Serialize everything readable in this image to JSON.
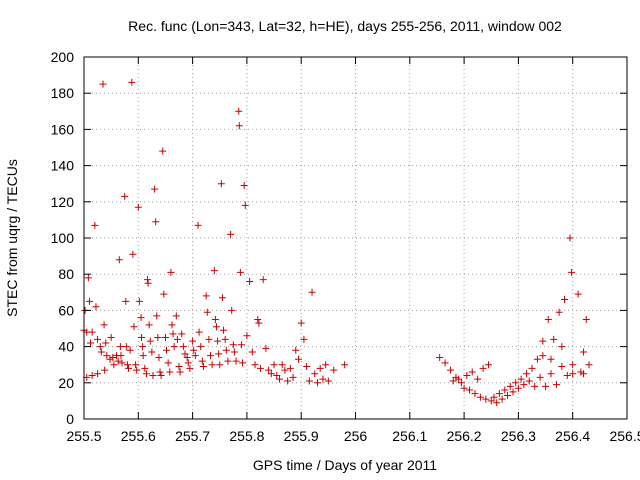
{
  "chart_data": {
    "type": "scatter",
    "title": "Rec. func (Lon=343, Lat=32, h=HE), days 255-256, 2011, window 002",
    "xlabel": "GPS time / Days of year 2011",
    "ylabel": "STEC from uqrg / TECUs",
    "xlim": [
      255.5,
      256.5
    ],
    "ylim": [
      0,
      200
    ],
    "grid": true,
    "marker": "plus",
    "color": "#cc0000",
    "xticks": [
      {
        "value": 255.5,
        "label": "255.5"
      },
      {
        "value": 255.6,
        "label": "255.6"
      },
      {
        "value": 255.7,
        "label": "255.7"
      },
      {
        "value": 255.8,
        "label": "255.8"
      },
      {
        "value": 255.9,
        "label": "255.9"
      },
      {
        "value": 256.0,
        "label": "256"
      },
      {
        "value": 256.1,
        "label": "256.1"
      },
      {
        "value": 256.2,
        "label": "256.2"
      },
      {
        "value": 256.3,
        "label": "256.3"
      },
      {
        "value": 256.4,
        "label": "256.4"
      },
      {
        "value": 256.5,
        "label": "256.5"
      }
    ],
    "yticks": [
      {
        "value": 0,
        "label": "0"
      },
      {
        "value": 20,
        "label": "20"
      },
      {
        "value": 40,
        "label": "40"
      },
      {
        "value": 60,
        "label": "60"
      },
      {
        "value": 80,
        "label": "80"
      },
      {
        "value": 100,
        "label": "100"
      },
      {
        "value": 120,
        "label": "120"
      },
      {
        "value": 140,
        "label": "140"
      },
      {
        "value": 160,
        "label": "160"
      },
      {
        "value": 180,
        "label": "180"
      },
      {
        "value": 200,
        "label": "200"
      }
    ],
    "series": [
      {
        "name": "STEC",
        "points": [
          [
            255.5,
            49
          ],
          [
            255.502,
            60
          ],
          [
            255.505,
            48
          ],
          [
            255.505,
            23
          ],
          [
            255.508,
            78
          ],
          [
            255.51,
            65
          ],
          [
            255.512,
            42
          ],
          [
            255.515,
            48
          ],
          [
            255.515,
            24
          ],
          [
            255.52,
            107
          ],
          [
            255.522,
            62
          ],
          [
            255.525,
            44
          ],
          [
            255.525,
            25
          ],
          [
            255.53,
            40
          ],
          [
            255.532,
            37
          ],
          [
            255.535,
            185
          ],
          [
            255.537,
            52
          ],
          [
            255.538,
            27
          ],
          [
            255.54,
            42
          ],
          [
            255.542,
            35
          ],
          [
            255.548,
            33
          ],
          [
            255.55,
            45
          ],
          [
            255.553,
            34
          ],
          [
            255.555,
            30
          ],
          [
            255.56,
            35
          ],
          [
            255.563,
            32
          ],
          [
            255.565,
            88
          ],
          [
            255.567,
            40
          ],
          [
            255.568,
            35
          ],
          [
            255.57,
            31
          ],
          [
            255.575,
            123
          ],
          [
            255.577,
            65
          ],
          [
            255.578,
            40
          ],
          [
            255.58,
            30
          ],
          [
            255.582,
            28
          ],
          [
            255.585,
            38
          ],
          [
            255.588,
            186
          ],
          [
            255.59,
            91
          ],
          [
            255.592,
            51
          ],
          [
            255.595,
            30
          ],
          [
            255.597,
            27
          ],
          [
            255.6,
            117
          ],
          [
            255.602,
            65
          ],
          [
            255.605,
            56
          ],
          [
            255.606,
            45
          ],
          [
            255.608,
            40
          ],
          [
            255.609,
            35
          ],
          [
            255.612,
            28
          ],
          [
            255.615,
            25
          ],
          [
            255.617,
            77
          ],
          [
            255.618,
            75
          ],
          [
            255.62,
            52
          ],
          [
            255.622,
            43
          ],
          [
            255.625,
            37
          ],
          [
            255.627,
            24
          ],
          [
            255.63,
            127
          ],
          [
            255.632,
            109
          ],
          [
            255.634,
            57
          ],
          [
            255.636,
            45
          ],
          [
            255.638,
            34
          ],
          [
            255.64,
            26
          ],
          [
            255.642,
            24
          ],
          [
            255.645,
            148
          ],
          [
            255.647,
            69
          ],
          [
            255.65,
            45
          ],
          [
            255.652,
            38
          ],
          [
            255.655,
            31
          ],
          [
            255.658,
            26
          ],
          [
            255.66,
            81
          ],
          [
            255.662,
            52
          ],
          [
            255.664,
            47
          ],
          [
            255.666,
            40
          ],
          [
            255.67,
            57
          ],
          [
            255.672,
            44
          ],
          [
            255.675,
            29
          ],
          [
            255.677,
            26
          ],
          [
            255.68,
            47
          ],
          [
            255.683,
            40
          ],
          [
            255.686,
            36
          ],
          [
            255.69,
            34
          ],
          [
            255.692,
            31
          ],
          [
            255.695,
            28
          ],
          [
            255.7,
            43
          ],
          [
            255.702,
            38
          ],
          [
            255.705,
            35
          ],
          [
            255.71,
            107
          ],
          [
            255.712,
            48
          ],
          [
            255.715,
            40
          ],
          [
            255.718,
            32
          ],
          [
            255.72,
            29
          ],
          [
            255.725,
            68
          ],
          [
            255.727,
            59
          ],
          [
            255.73,
            44
          ],
          [
            255.733,
            35
          ],
          [
            255.736,
            30
          ],
          [
            255.74,
            82
          ],
          [
            255.742,
            55
          ],
          [
            255.744,
            51
          ],
          [
            255.746,
            43
          ],
          [
            255.748,
            36
          ],
          [
            255.75,
            30
          ],
          [
            255.753,
            130
          ],
          [
            255.755,
            67
          ],
          [
            255.757,
            49
          ],
          [
            255.76,
            44
          ],
          [
            255.762,
            38
          ],
          [
            255.765,
            32
          ],
          [
            255.77,
            102
          ],
          [
            255.772,
            60
          ],
          [
            255.775,
            41
          ],
          [
            255.777,
            37
          ],
          [
            255.78,
            32
          ],
          [
            255.785,
            170
          ],
          [
            255.786,
            162
          ],
          [
            255.788,
            81
          ],
          [
            255.79,
            41
          ],
          [
            255.792,
            31
          ],
          [
            255.795,
            129
          ],
          [
            255.797,
            118
          ],
          [
            255.8,
            46
          ],
          [
            255.805,
            76
          ],
          [
            255.81,
            37
          ],
          [
            255.815,
            30
          ],
          [
            255.82,
            55
          ],
          [
            255.822,
            53
          ],
          [
            255.825,
            28
          ],
          [
            255.83,
            77
          ],
          [
            255.835,
            39
          ],
          [
            255.84,
            27
          ],
          [
            255.845,
            25
          ],
          [
            255.85,
            30
          ],
          [
            255.855,
            24
          ],
          [
            255.86,
            22
          ],
          [
            255.865,
            30
          ],
          [
            255.87,
            27
          ],
          [
            255.875,
            21
          ],
          [
            255.88,
            28
          ],
          [
            255.885,
            23
          ],
          [
            255.89,
            38
          ],
          [
            255.895,
            33
          ],
          [
            255.9,
            53
          ],
          [
            255.905,
            44
          ],
          [
            255.91,
            29
          ],
          [
            255.915,
            21
          ],
          [
            255.92,
            70
          ],
          [
            255.925,
            25
          ],
          [
            255.93,
            20
          ],
          [
            255.935,
            28
          ],
          [
            255.94,
            22
          ],
          [
            255.945,
            30
          ],
          [
            255.95,
            21
          ],
          [
            255.96,
            27
          ],
          [
            255.98,
            30
          ],
          [
            256.155,
            34
          ],
          [
            256.165,
            31
          ],
          [
            256.175,
            27
          ],
          [
            256.18,
            21
          ],
          [
            256.185,
            23
          ],
          [
            256.19,
            22
          ],
          [
            256.195,
            20
          ],
          [
            256.2,
            17
          ],
          [
            256.205,
            24
          ],
          [
            256.21,
            16
          ],
          [
            256.215,
            26
          ],
          [
            256.22,
            14
          ],
          [
            256.225,
            22
          ],
          [
            256.23,
            12
          ],
          [
            256.235,
            28
          ],
          [
            256.24,
            11
          ],
          [
            256.245,
            30
          ],
          [
            256.25,
            10
          ],
          [
            256.255,
            12
          ],
          [
            256.26,
            9
          ],
          [
            256.265,
            14
          ],
          [
            256.27,
            11
          ],
          [
            256.275,
            16
          ],
          [
            256.28,
            13
          ],
          [
            256.285,
            18
          ],
          [
            256.29,
            15
          ],
          [
            256.295,
            20
          ],
          [
            256.3,
            17
          ],
          [
            256.305,
            22
          ],
          [
            256.31,
            19
          ],
          [
            256.315,
            25
          ],
          [
            256.32,
            21
          ],
          [
            256.325,
            28
          ],
          [
            256.33,
            18
          ],
          [
            256.335,
            33
          ],
          [
            256.34,
            23
          ],
          [
            256.345,
            43
          ],
          [
            256.35,
            18
          ],
          [
            256.355,
            55
          ],
          [
            256.36,
            33
          ],
          [
            256.365,
            44
          ],
          [
            256.37,
            19
          ],
          [
            256.375,
            59
          ],
          [
            256.38,
            40
          ],
          [
            256.385,
            66
          ],
          [
            256.39,
            24
          ],
          [
            256.395,
            100
          ],
          [
            256.398,
            81
          ],
          [
            256.4,
            30
          ],
          [
            256.41,
            69
          ],
          [
            256.415,
            26
          ],
          [
            256.42,
            37
          ],
          [
            256.425,
            55
          ],
          [
            256.43,
            30
          ],
          [
            256.345,
            35
          ],
          [
            256.36,
            25
          ],
          [
            256.38,
            29
          ],
          [
            256.4,
            25
          ],
          [
            256.42,
            25
          ]
        ]
      }
    ]
  }
}
